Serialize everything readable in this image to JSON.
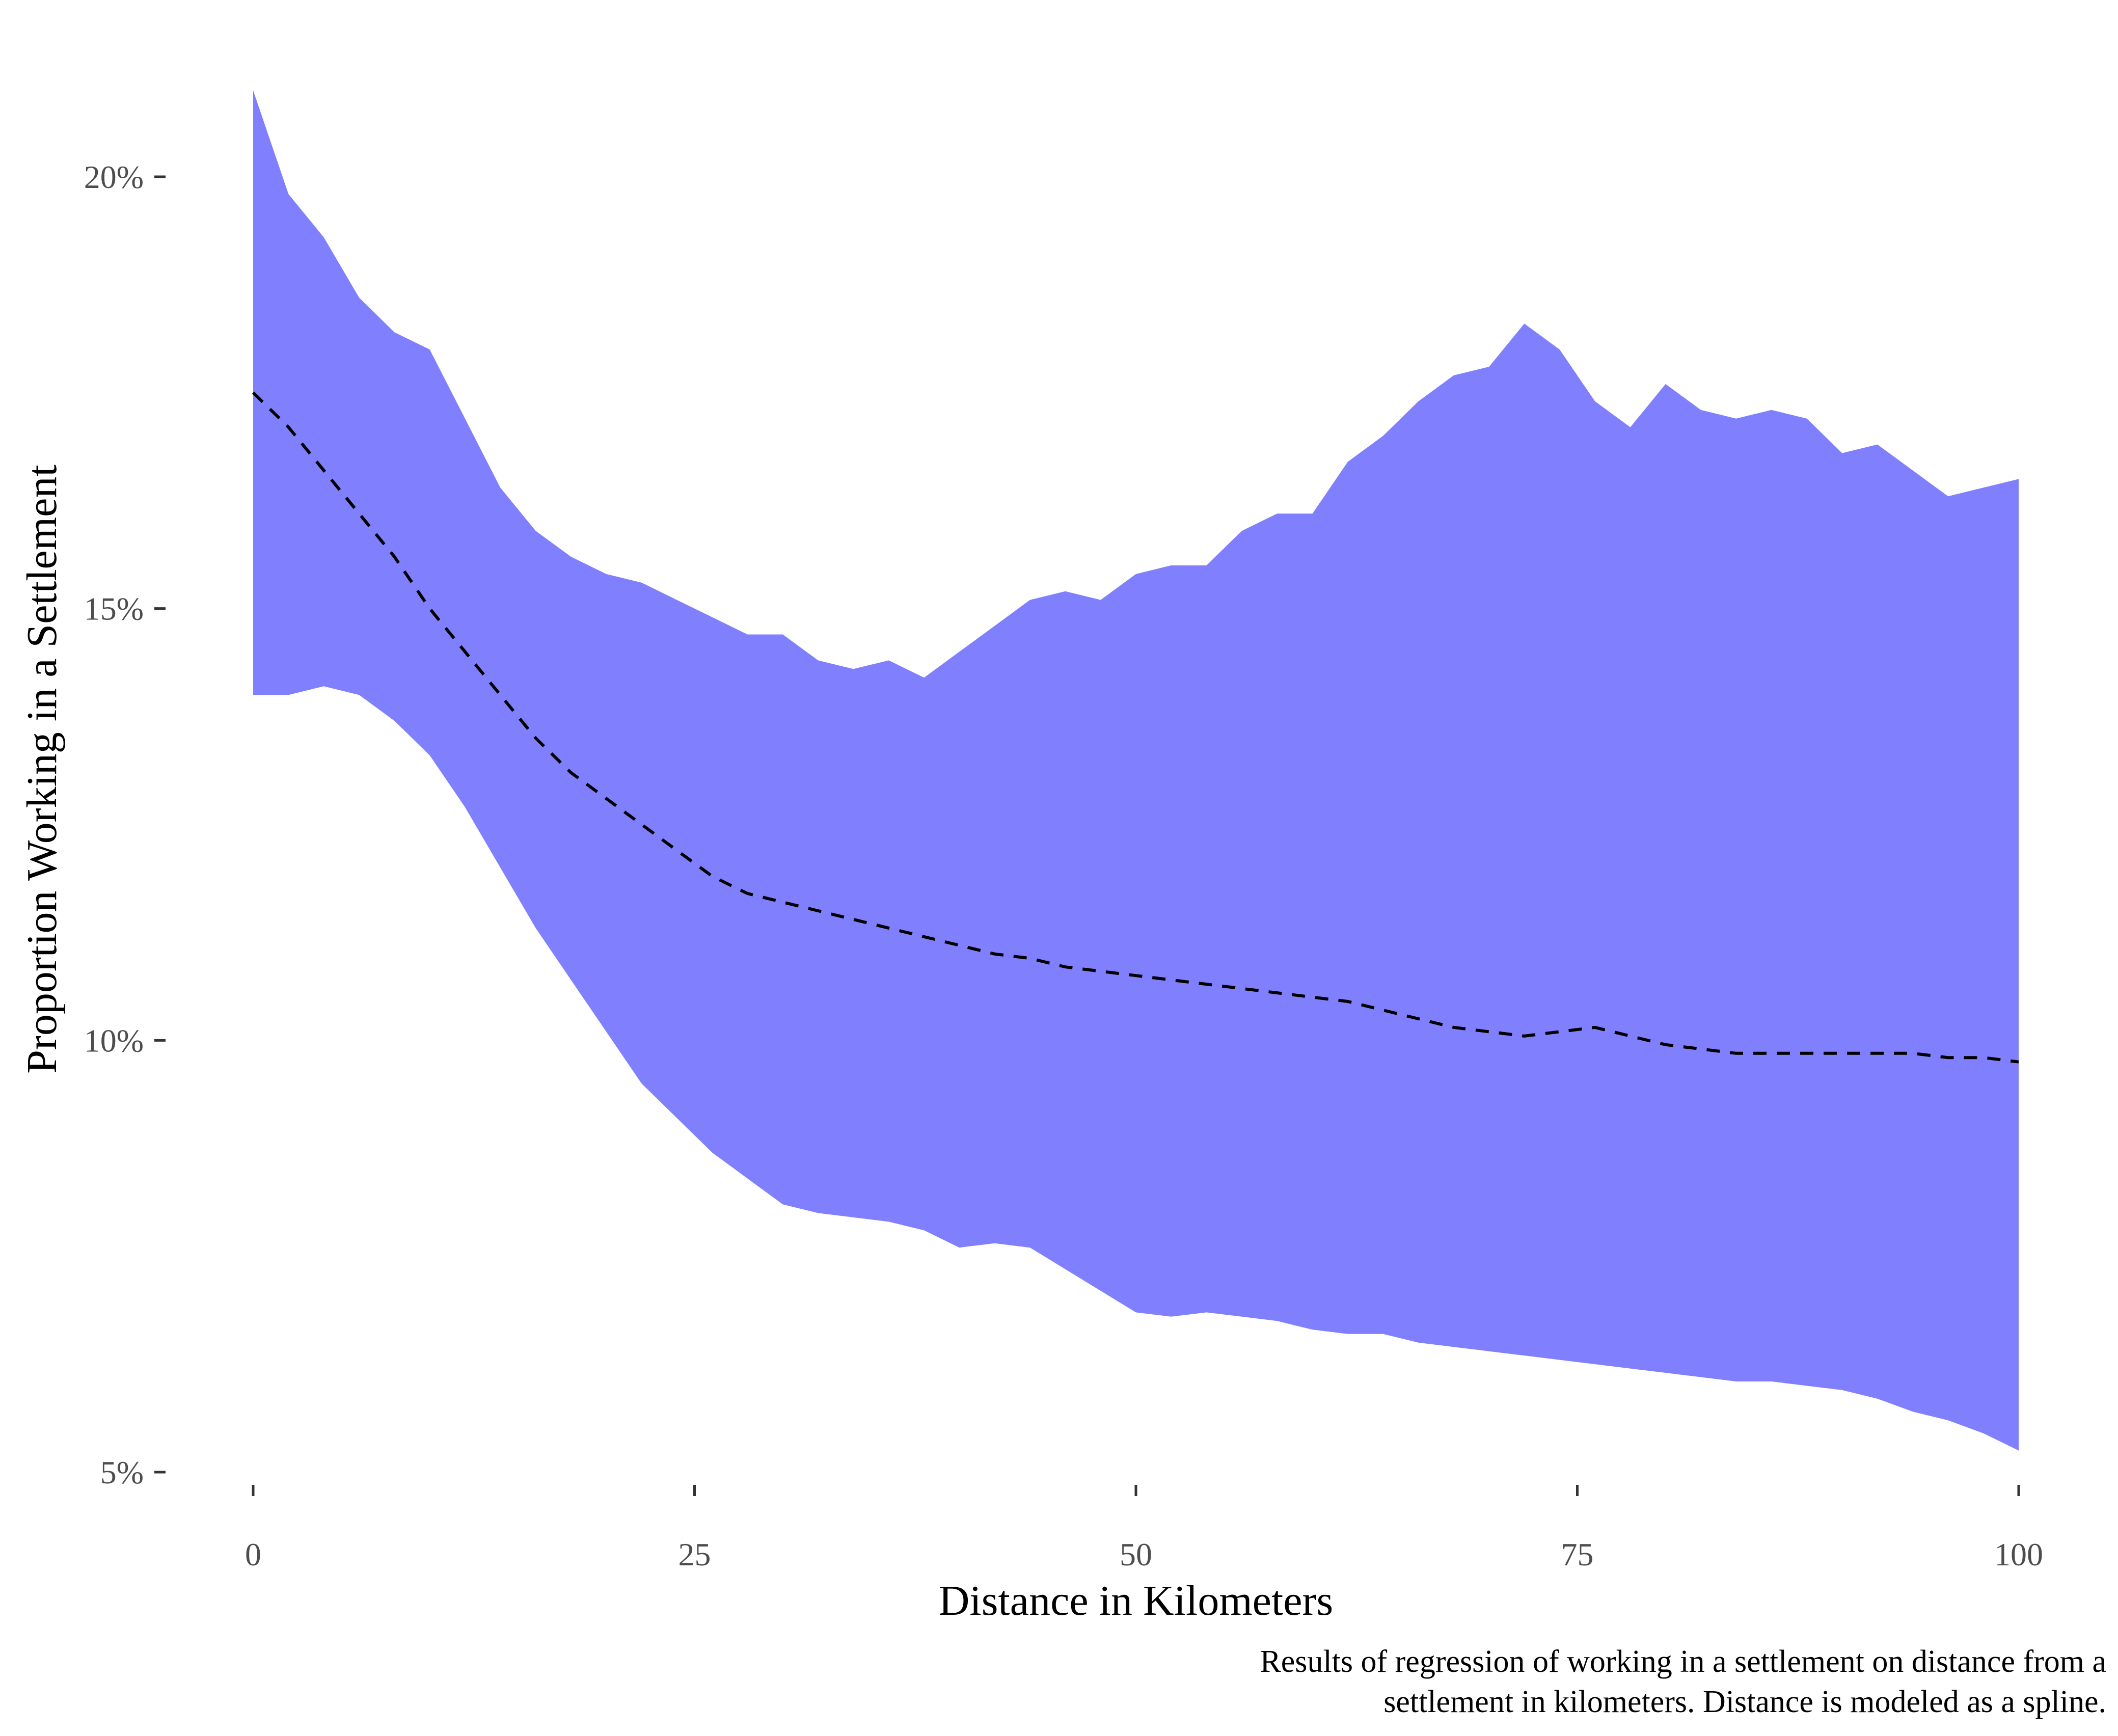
{
  "chart_data": {
    "type": "area",
    "xlabel": "Distance in Kilometers",
    "ylabel": "Proportion Working in a Settlement",
    "caption_lines": [
      "Results of regression of working in a settlement on distance from a",
      "settlement in kilometers. Distance is modeled as a spline."
    ],
    "xlim": [
      0,
      100
    ],
    "ylim": [
      5,
      21
    ],
    "x_ticks": [
      0,
      25,
      50,
      75,
      100
    ],
    "x_tick_labels": [
      "0",
      "25",
      "50",
      "75",
      "100"
    ],
    "y_ticks": [
      5,
      10,
      15,
      20
    ],
    "y_tick_labels": [
      "5%",
      "10%",
      "15%",
      "20%"
    ],
    "grid": false,
    "legend": "none",
    "colors": {
      "band": "#8080ff",
      "line": "#000000"
    },
    "x": [
      0,
      2,
      4,
      6,
      8,
      10,
      12,
      14,
      16,
      18,
      20,
      22,
      24,
      26,
      28,
      30,
      32,
      34,
      36,
      38,
      40,
      42,
      44,
      46,
      48,
      50,
      52,
      54,
      56,
      58,
      60,
      62,
      64,
      66,
      68,
      70,
      72,
      74,
      76,
      78,
      80,
      82,
      84,
      86,
      88,
      90,
      92,
      94,
      96,
      98,
      100
    ],
    "series": [
      {
        "role": "upper",
        "values": [
          21.0,
          19.8,
          19.3,
          18.6,
          18.2,
          18.0,
          17.2,
          16.4,
          15.9,
          15.6,
          15.4,
          15.3,
          15.1,
          14.9,
          14.7,
          14.7,
          14.4,
          14.3,
          14.4,
          14.2,
          14.5,
          14.8,
          15.1,
          15.2,
          15.1,
          15.4,
          15.5,
          15.5,
          15.9,
          16.1,
          16.1,
          16.7,
          17.0,
          17.4,
          17.7,
          17.8,
          18.3,
          18.0,
          17.4,
          17.1,
          17.6,
          17.3,
          17.2,
          17.3,
          17.2,
          16.8,
          16.9,
          16.6,
          16.3,
          16.4,
          16.5
        ]
      },
      {
        "role": "estimate",
        "values": [
          17.5,
          17.1,
          16.6,
          16.1,
          15.6,
          15.0,
          14.5,
          14.0,
          13.5,
          13.1,
          12.8,
          12.5,
          12.2,
          11.9,
          11.7,
          11.6,
          11.5,
          11.4,
          11.3,
          11.2,
          11.1,
          11.0,
          10.95,
          10.85,
          10.8,
          10.75,
          10.7,
          10.65,
          10.6,
          10.55,
          10.5,
          10.45,
          10.35,
          10.25,
          10.15,
          10.1,
          10.05,
          10.1,
          10.15,
          10.05,
          9.95,
          9.9,
          9.85,
          9.85,
          9.85,
          9.85,
          9.85,
          9.85,
          9.8,
          9.8,
          9.75
        ]
      },
      {
        "role": "lower",
        "values": [
          14.0,
          14.0,
          14.1,
          14.0,
          13.7,
          13.3,
          12.7,
          12.0,
          11.3,
          10.7,
          10.1,
          9.5,
          9.1,
          8.7,
          8.4,
          8.1,
          8.0,
          7.95,
          7.9,
          7.8,
          7.6,
          7.65,
          7.6,
          7.35,
          7.1,
          6.85,
          6.8,
          6.85,
          6.8,
          6.75,
          6.65,
          6.6,
          6.6,
          6.5,
          6.45,
          6.4,
          6.35,
          6.3,
          6.25,
          6.2,
          6.15,
          6.1,
          6.05,
          6.05,
          6.0,
          5.95,
          5.85,
          5.7,
          5.6,
          5.45,
          5.25
        ]
      }
    ]
  }
}
